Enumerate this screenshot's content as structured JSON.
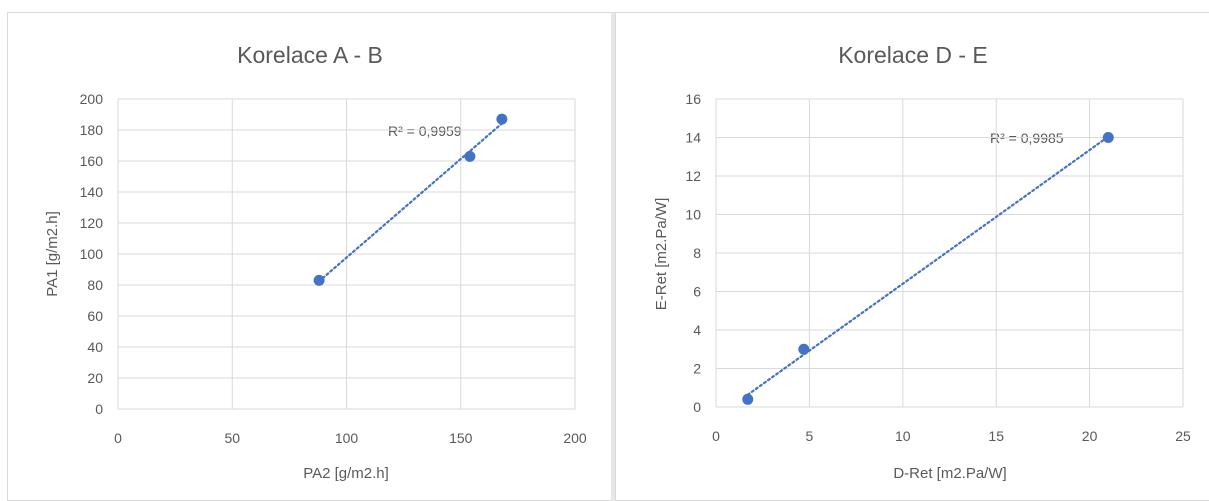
{
  "chart_data": [
    {
      "type": "scatter",
      "title": "Korelace A - B",
      "xlabel": "PA2 [g/m2.h]",
      "ylabel": "PA1 [g/m2.h]",
      "xlim": [
        0,
        200
      ],
      "ylim": [
        0,
        200
      ],
      "xticks": [
        "0",
        "50",
        "100",
        "150",
        "200"
      ],
      "yticks": [
        "0",
        "20",
        "40",
        "60",
        "80",
        "100",
        "120",
        "140",
        "160",
        "180",
        "200"
      ],
      "grid": true,
      "series": [
        {
          "x": [
            88,
            154,
            168
          ],
          "y": [
            83,
            163,
            187
          ]
        }
      ],
      "trendline": {
        "type": "linear",
        "style": "dotted",
        "label": "R² = 0,9959"
      },
      "colors": {
        "marker": "#4472c4",
        "trendline": "#4472c4",
        "grid": "#d9d9d9"
      }
    },
    {
      "type": "scatter",
      "title": "Korelace D - E",
      "xlabel": "D-Ret  [m2.Pa/W]",
      "ylabel": "E-Ret  [m2.Pa/W]",
      "xlim": [
        0,
        25
      ],
      "ylim": [
        0,
        16
      ],
      "xticks": [
        "0",
        "5",
        "10",
        "15",
        "20",
        "25"
      ],
      "yticks": [
        "0",
        "2",
        "4",
        "6",
        "8",
        "10",
        "12",
        "14",
        "16"
      ],
      "grid": true,
      "series": [
        {
          "x": [
            1.7,
            4.7,
            21
          ],
          "y": [
            0.4,
            3.0,
            14.0
          ]
        }
      ],
      "trendline": {
        "type": "linear",
        "style": "dotted",
        "label": "R² = 0,9985"
      },
      "colors": {
        "marker": "#4472c4",
        "trendline": "#4472c4",
        "grid": "#d9d9d9"
      }
    }
  ]
}
